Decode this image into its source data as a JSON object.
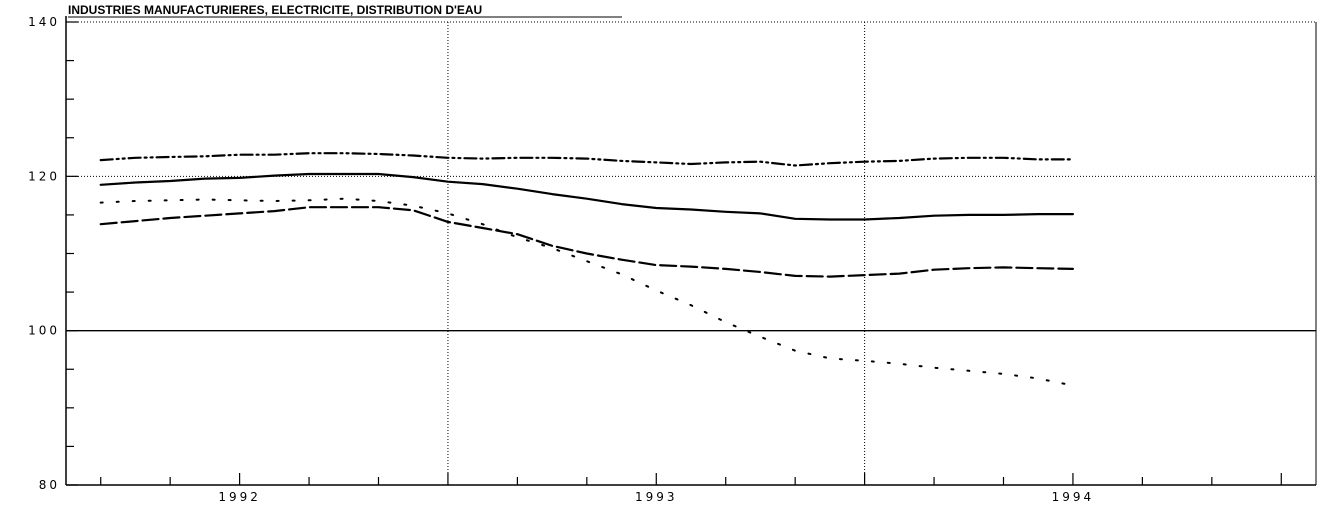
{
  "chart_data": {
    "type": "line",
    "title": "INDUSTRIES MANUFACTURIERES, ELECTRICITE, DISTRIBUTION D'EAU",
    "xlabel": "",
    "ylabel": "",
    "x_range": [
      "1991-08",
      "1994-08"
    ],
    "ylim": [
      80,
      140
    ],
    "y_ticks": [
      80,
      100,
      120,
      140
    ],
    "y_tick_labels": [
      "80",
      "100",
      "120",
      "140"
    ],
    "x_tick_labels": [
      {
        "date": "1992-01",
        "label": "1992"
      },
      {
        "date": "1993-01",
        "label": "1993"
      },
      {
        "date": "1994-01",
        "label": "1994"
      }
    ],
    "vertical_gridlines": [
      "1992-07",
      "1993-07"
    ],
    "grid": true,
    "reference_line": 100,
    "colors": {
      "lines": "#000000",
      "background": "#ffffff",
      "grid": "#000000"
    },
    "series": [
      {
        "style": "dash-dot-dot",
        "x": [
          "1991-09",
          "1991-10",
          "1991-11",
          "1991-12",
          "1992-01",
          "1992-02",
          "1992-03",
          "1992-04",
          "1992-05",
          "1992-06",
          "1992-07",
          "1992-08",
          "1992-09",
          "1992-10",
          "1992-11",
          "1992-12",
          "1993-01",
          "1993-02",
          "1993-03",
          "1993-04",
          "1993-05",
          "1993-06",
          "1993-07",
          "1993-08",
          "1993-09",
          "1993-10",
          "1993-11",
          "1993-12",
          "1994-01"
        ],
        "values": [
          122.1,
          122.4,
          122.5,
          122.6,
          122.8,
          122.8,
          123.0,
          123.0,
          122.9,
          122.7,
          122.4,
          122.3,
          122.4,
          122.4,
          122.3,
          122.0,
          121.8,
          121.6,
          121.8,
          121.9,
          121.4,
          121.7,
          121.9,
          122.0,
          122.3,
          122.4,
          122.4,
          122.2,
          122.2
        ]
      },
      {
        "style": "solid",
        "x": [
          "1991-09",
          "1991-10",
          "1991-11",
          "1991-12",
          "1992-01",
          "1992-02",
          "1992-03",
          "1992-04",
          "1992-05",
          "1992-06",
          "1992-07",
          "1992-08",
          "1992-09",
          "1992-10",
          "1992-11",
          "1992-12",
          "1993-01",
          "1993-02",
          "1993-03",
          "1993-04",
          "1993-05",
          "1993-06",
          "1993-07",
          "1993-08",
          "1993-09",
          "1993-10",
          "1993-11",
          "1993-12",
          "1994-01"
        ],
        "values": [
          118.9,
          119.2,
          119.4,
          119.7,
          119.8,
          120.1,
          120.3,
          120.3,
          120.3,
          119.9,
          119.3,
          119.0,
          118.4,
          117.7,
          117.1,
          116.4,
          115.9,
          115.7,
          115.4,
          115.2,
          114.5,
          114.4,
          114.4,
          114.6,
          114.9,
          115.0,
          115.0,
          115.1,
          115.1
        ]
      },
      {
        "style": "dashed",
        "x": [
          "1991-09",
          "1991-10",
          "1991-11",
          "1991-12",
          "1992-01",
          "1992-02",
          "1992-03",
          "1992-04",
          "1992-05",
          "1992-06",
          "1992-07",
          "1992-08",
          "1992-09",
          "1992-10",
          "1992-11",
          "1992-12",
          "1993-01",
          "1993-02",
          "1993-03",
          "1993-04",
          "1993-05",
          "1993-06",
          "1993-07",
          "1993-08",
          "1993-09",
          "1993-10",
          "1993-11",
          "1993-12",
          "1994-01"
        ],
        "values": [
          113.8,
          114.2,
          114.6,
          114.9,
          115.2,
          115.5,
          116.0,
          116.0,
          116.0,
          115.6,
          114.1,
          113.3,
          112.5,
          111.0,
          110.0,
          109.2,
          108.5,
          108.3,
          108.0,
          107.6,
          107.1,
          107.0,
          107.2,
          107.4,
          107.9,
          108.1,
          108.2,
          108.1,
          108.0
        ]
      },
      {
        "style": "dotted",
        "x": [
          "1991-09",
          "1991-10",
          "1991-11",
          "1991-12",
          "1992-01",
          "1992-02",
          "1992-03",
          "1992-04",
          "1992-05",
          "1992-06",
          "1992-07",
          "1992-08",
          "1992-09",
          "1992-10",
          "1992-11",
          "1992-12",
          "1993-01",
          "1993-02",
          "1993-03",
          "1993-04",
          "1993-05",
          "1993-06",
          "1993-07",
          "1993-08",
          "1993-09",
          "1993-10",
          "1993-11",
          "1993-12",
          "1994-01"
        ],
        "values": [
          116.6,
          116.8,
          116.9,
          117.0,
          116.9,
          116.8,
          116.9,
          117.1,
          116.8,
          116.2,
          115.2,
          113.8,
          112.1,
          110.7,
          109.0,
          107.3,
          105.2,
          103.3,
          101.1,
          99.2,
          97.4,
          96.4,
          96.1,
          95.7,
          95.2,
          94.8,
          94.4,
          93.8,
          92.9
        ]
      }
    ]
  }
}
